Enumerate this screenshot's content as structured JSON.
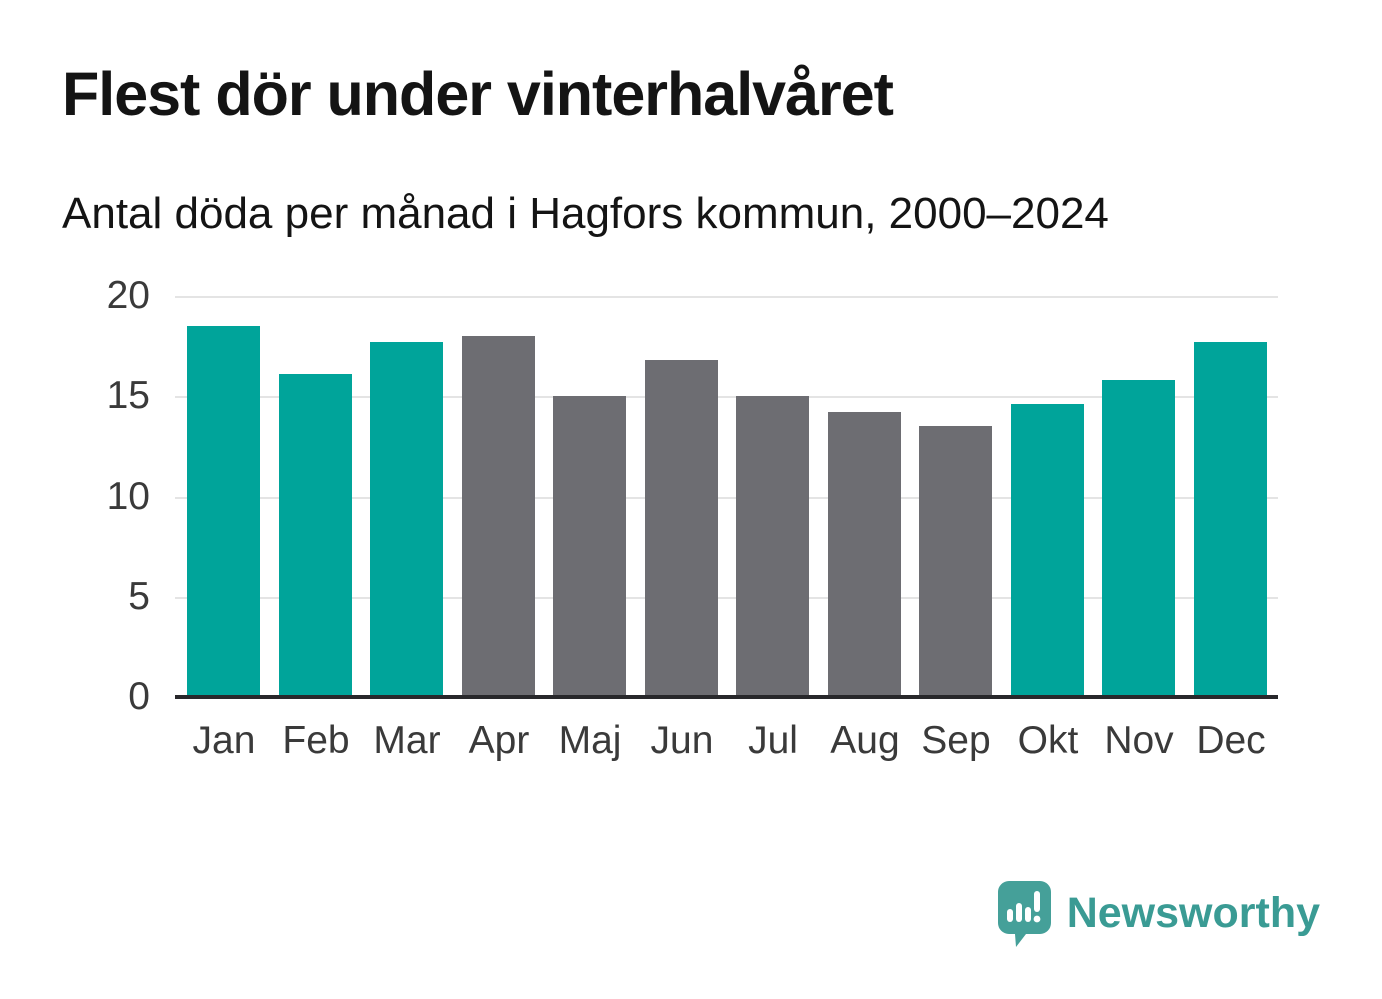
{
  "title": "Flest dör under vinterhalvåret",
  "subtitle": "Antal döda per månad i Hagfors kommun, 2000–2024",
  "logo": {
    "text": "Newsworthy",
    "icon": "newsworthy-speech-bubble-bar-chart-icon"
  },
  "colors": {
    "winter_bar": "#00a49a",
    "summer_bar": "#6d6d72",
    "gridline": "#e4e4e4",
    "axis_line": "#28282b",
    "axis_text": "#3a3a3a",
    "title_text": "#141414",
    "logo_teal": "#3a9b94",
    "logo_icon_teal": "#45a099",
    "background": "#ffffff"
  },
  "chart_data": {
    "type": "bar",
    "title": "Flest dör under vinterhalvåret",
    "subtitle": "Antal döda per månad i Hagfors kommun, 2000–2024",
    "categories": [
      "Jan",
      "Feb",
      "Mar",
      "Apr",
      "Maj",
      "Jun",
      "Jul",
      "Aug",
      "Sep",
      "Okt",
      "Nov",
      "Dec"
    ],
    "values": [
      18.5,
      16.1,
      17.7,
      18.0,
      15.0,
      16.8,
      15.0,
      14.2,
      13.5,
      14.6,
      15.8,
      17.7
    ],
    "series_groups": [
      "winter",
      "winter",
      "winter",
      "summer",
      "summer",
      "summer",
      "summer",
      "summer",
      "summer",
      "winter",
      "winter",
      "winter"
    ],
    "xlabel": "",
    "ylabel": "",
    "ylim": [
      0,
      20
    ],
    "yticks": [
      0,
      5,
      10,
      15,
      20
    ],
    "grid": "horizontal",
    "legend": "none"
  }
}
